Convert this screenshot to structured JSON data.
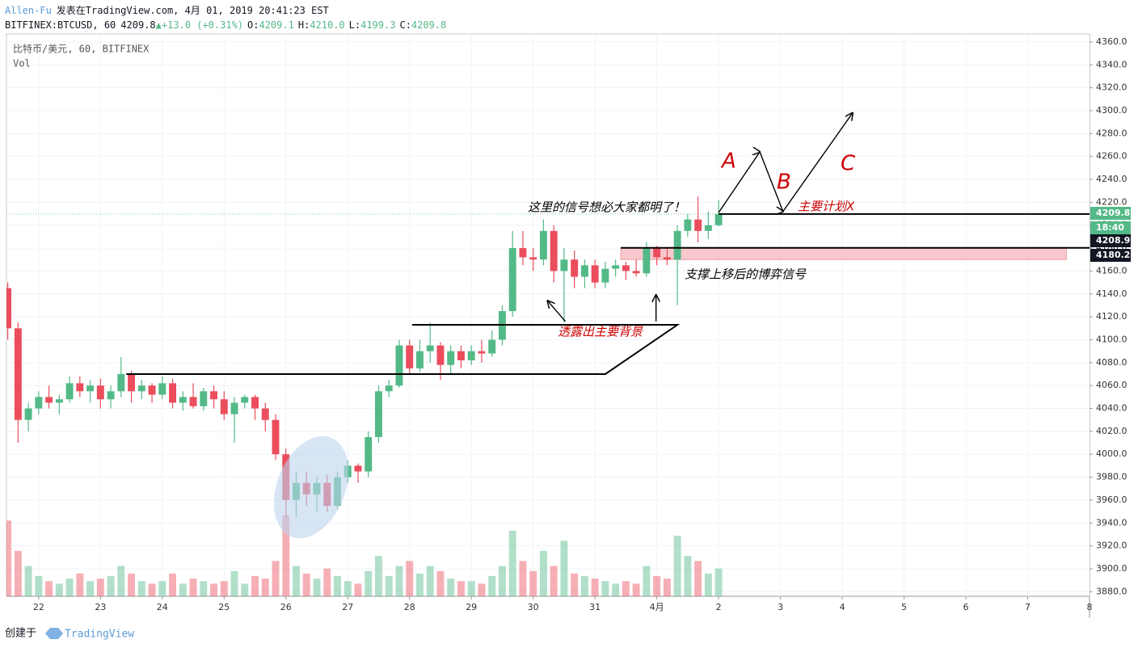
{
  "header": {
    "author": "Allen-Fu",
    "published": "发表在TradingView.com, 4月 01, 2019 20:41:23 EST",
    "symbol": "BITFINEX:BTCUSD, 60",
    "last": "4209.8",
    "direction": "▲",
    "change": "+13.0 (+0.31%)",
    "ohlc": [
      {
        "key": "O:",
        "value": "4209.1"
      },
      {
        "key": "H:",
        "value": "4210.0"
      },
      {
        "key": "L:",
        "value": "4199.3"
      },
      {
        "key": "C:",
        "value": "4209.8"
      }
    ]
  },
  "legend": {
    "series": "比特币/美元, 60, BITFINEX",
    "volume": "Vol"
  },
  "footer": {
    "created": "创建于",
    "brand": "TradingView"
  },
  "annotations": {
    "signal": "这里的信号想必大家都明了！",
    "plan": "主要计划X",
    "support": "支撑上移后的博弈信号",
    "background": "透露出主要背景",
    "a": "A",
    "b": "B",
    "c": "C"
  },
  "chart_data": {
    "type": "candlestick",
    "up_color": "#53b987",
    "down_color": "#eb4d5c",
    "grid": true,
    "xlim": [
      -12.5,
      408
    ],
    "ylim": [
      3876,
      4367
    ],
    "xticks": [
      {
        "value": 0,
        "label": "22"
      },
      {
        "value": 24,
        "label": "23"
      },
      {
        "value": 48,
        "label": "24"
      },
      {
        "value": 72,
        "label": "25"
      },
      {
        "value": 96,
        "label": "26"
      },
      {
        "value": 120,
        "label": "27"
      },
      {
        "value": 144,
        "label": "28"
      },
      {
        "value": 168,
        "label": "29"
      },
      {
        "value": 192,
        "label": "30"
      },
      {
        "value": 216,
        "label": "31"
      },
      {
        "value": 240,
        "label": "4月"
      },
      {
        "value": 264,
        "label": "2"
      },
      {
        "value": 288,
        "label": "3"
      },
      {
        "value": 312,
        "label": "4"
      },
      {
        "value": 336,
        "label": "5"
      },
      {
        "value": 360,
        "label": "6"
      },
      {
        "value": 384,
        "label": "7"
      },
      {
        "value": 408,
        "label": "8"
      }
    ],
    "yticks": [
      {
        "value": 3880,
        "label": "3880.0"
      },
      {
        "value": 3900,
        "label": "3900.0"
      },
      {
        "value": 3920,
        "label": "3920.0"
      },
      {
        "value": 3940,
        "label": "3940.0"
      },
      {
        "value": 3960,
        "label": "3960.0"
      },
      {
        "value": 3980,
        "label": "3980.0"
      },
      {
        "value": 4000,
        "label": "4000.0"
      },
      {
        "value": 4020,
        "label": "4020.0"
      },
      {
        "value": 4040,
        "label": "4040.0"
      },
      {
        "value": 4060,
        "label": "4060.0"
      },
      {
        "value": 4080,
        "label": "4080.0"
      },
      {
        "value": 4100,
        "label": "4100.0"
      },
      {
        "value": 4120,
        "label": "4120.0"
      },
      {
        "value": 4140,
        "label": "4140.0"
      },
      {
        "value": 4160,
        "label": "4160.0"
      },
      {
        "value": 4180,
        "label": "4180.0"
      },
      {
        "value": 4200,
        "label": "4200.0"
      },
      {
        "value": 4220,
        "label": "4220.0"
      },
      {
        "value": 4240,
        "label": "4240.0"
      },
      {
        "value": 4260,
        "label": "4260.0"
      },
      {
        "value": 4280,
        "label": "4280.0"
      },
      {
        "value": 4300,
        "label": "4300.0"
      },
      {
        "value": 4320,
        "label": "4320.0"
      },
      {
        "value": 4340,
        "label": "4340.0"
      },
      {
        "value": 4360,
        "label": "4360.0"
      }
    ],
    "x": [
      -12,
      -8,
      -4,
      0,
      4,
      8,
      12,
      16,
      20,
      24,
      28,
      32,
      36,
      40,
      44,
      48,
      52,
      56,
      60,
      64,
      68,
      72,
      76,
      80,
      84,
      88,
      92,
      96,
      100,
      104,
      108,
      112,
      116,
      120,
      124,
      128,
      132,
      136,
      140,
      144,
      148,
      152,
      156,
      160,
      164,
      168,
      172,
      176,
      180,
      184,
      188,
      192,
      196,
      200,
      204,
      208,
      212,
      216,
      220,
      224,
      228,
      232,
      236,
      240,
      244,
      248,
      252,
      256,
      260,
      264
    ],
    "open": [
      4145,
      4110,
      4030,
      4040,
      4050,
      4045,
      4048,
      4062,
      4055,
      4060,
      4048,
      4055,
      4070,
      4055,
      4060,
      4052,
      4062,
      4045,
      4050,
      4042,
      4055,
      4048,
      4035,
      4045,
      4050,
      4040,
      4030,
      4000,
      3960,
      3975,
      3965,
      3975,
      3955,
      3980,
      3990,
      3985,
      4015,
      4055,
      4060,
      4095,
      4075,
      4090,
      4095,
      4078,
      4090,
      4082,
      4090,
      4088,
      4100,
      4125,
      4180,
      4172,
      4170,
      4195,
      4160,
      4170,
      4155,
      4165,
      4150,
      4162,
      4165,
      4160,
      4158,
      4180,
      4172,
      4170,
      4195,
      4205,
      4195,
      4200
    ],
    "high": [
      4150,
      4115,
      4045,
      4055,
      4060,
      4052,
      4068,
      4068,
      4065,
      4066,
      4060,
      4085,
      4073,
      4065,
      4062,
      4068,
      4066,
      4055,
      4062,
      4058,
      4060,
      4055,
      4050,
      4052,
      4052,
      4045,
      4035,
      4005,
      3985,
      3985,
      3980,
      3982,
      3985,
      3995,
      3992,
      4020,
      4060,
      4065,
      4100,
      4100,
      4100,
      4115,
      4098,
      4095,
      4095,
      4095,
      4100,
      4108,
      4130,
      4195,
      4195,
      4180,
      4205,
      4200,
      4180,
      4178,
      4170,
      4170,
      4168,
      4170,
      4168,
      4170,
      4185,
      4182,
      4180,
      4200,
      4210,
      4225,
      4212,
      4222
    ],
    "low": [
      4100,
      4010,
      4020,
      4035,
      4040,
      4035,
      4045,
      4050,
      4045,
      4040,
      4040,
      4050,
      4045,
      4048,
      4045,
      4048,
      4040,
      4038,
      4040,
      4038,
      4040,
      4030,
      4010,
      4040,
      4030,
      4020,
      3995,
      3945,
      3945,
      3955,
      3950,
      3950,
      3952,
      3975,
      3975,
      3980,
      4010,
      4050,
      4058,
      4070,
      4072,
      4080,
      4065,
      4070,
      4075,
      4078,
      4080,
      4085,
      4095,
      4120,
      4165,
      4160,
      4165,
      4150,
      4115,
      4145,
      4145,
      4145,
      4145,
      4155,
      4152,
      4155,
      4155,
      4165,
      4165,
      4130,
      4190,
      4185,
      4188,
      4199
    ],
    "close": [
      4110,
      4030,
      4040,
      4050,
      4045,
      4048,
      4062,
      4055,
      4060,
      4048,
      4055,
      4070,
      4055,
      4060,
      4052,
      4062,
      4045,
      4050,
      4042,
      4055,
      4048,
      4035,
      4045,
      4050,
      4040,
      4030,
      4000,
      3960,
      3975,
      3965,
      3975,
      3955,
      3980,
      3990,
      3985,
      4015,
      4055,
      4060,
      4095,
      4075,
      4090,
      4095,
      4078,
      4090,
      4082,
      4090,
      4088,
      4100,
      4125,
      4180,
      4172,
      4170,
      4195,
      4160,
      4170,
      4155,
      4165,
      4150,
      4162,
      4165,
      4160,
      4158,
      4180,
      4172,
      4170,
      4195,
      4205,
      4195,
      4200,
      4209.8
    ],
    "volume": [
      150,
      90,
      60,
      40,
      30,
      25,
      35,
      45,
      30,
      35,
      40,
      60,
      45,
      30,
      25,
      30,
      45,
      25,
      35,
      30,
      25,
      30,
      50,
      25,
      40,
      35,
      70,
      160,
      60,
      45,
      35,
      55,
      40,
      30,
      25,
      50,
      80,
      40,
      60,
      70,
      45,
      60,
      50,
      35,
      30,
      30,
      25,
      40,
      60,
      130,
      70,
      50,
      90,
      60,
      110,
      45,
      40,
      35,
      30,
      25,
      30,
      25,
      60,
      40,
      35,
      120,
      80,
      70,
      45,
      55
    ],
    "zone": {
      "x": [
        226,
        399
      ],
      "y": [
        4170,
        4180.2
      ],
      "color": "#f8c8cc"
    },
    "drawings": [
      {
        "points": [
          [
            34,
            4070
          ],
          [
            220,
            4070
          ],
          [
            248,
            4113
          ],
          [
            145,
            4113
          ]
        ],
        "arrow": false
      },
      {
        "points": [
          [
            264,
            4209.8
          ],
          [
            408,
            4209.8
          ]
        ],
        "arrow": false
      },
      {
        "points": [
          [
            226,
            4180.2
          ],
          [
            408,
            4180.2
          ]
        ],
        "arrow": false
      },
      {
        "points": [
          [
            264,
            4211
          ],
          [
            280,
            4264
          ],
          [
            289,
            4212
          ],
          [
            316,
            4298
          ]
        ],
        "arrow": true
      },
      {
        "points": [
          [
            204.5,
            4116
          ],
          [
            197.6,
            4134
          ]
        ],
        "arrow": true
      },
      {
        "points": [
          [
            239.7,
            4116
          ],
          [
            239.7,
            4139
          ]
        ],
        "arrow": true
      }
    ],
    "price_markers": [
      {
        "value": 4209.8,
        "color": "#53b987"
      },
      {
        "label": "18:40",
        "color": "#53b987"
      },
      {
        "value": 4208.9,
        "color": "#131722"
      },
      {
        "value": 4180.2,
        "color": "#131722"
      }
    ]
  }
}
